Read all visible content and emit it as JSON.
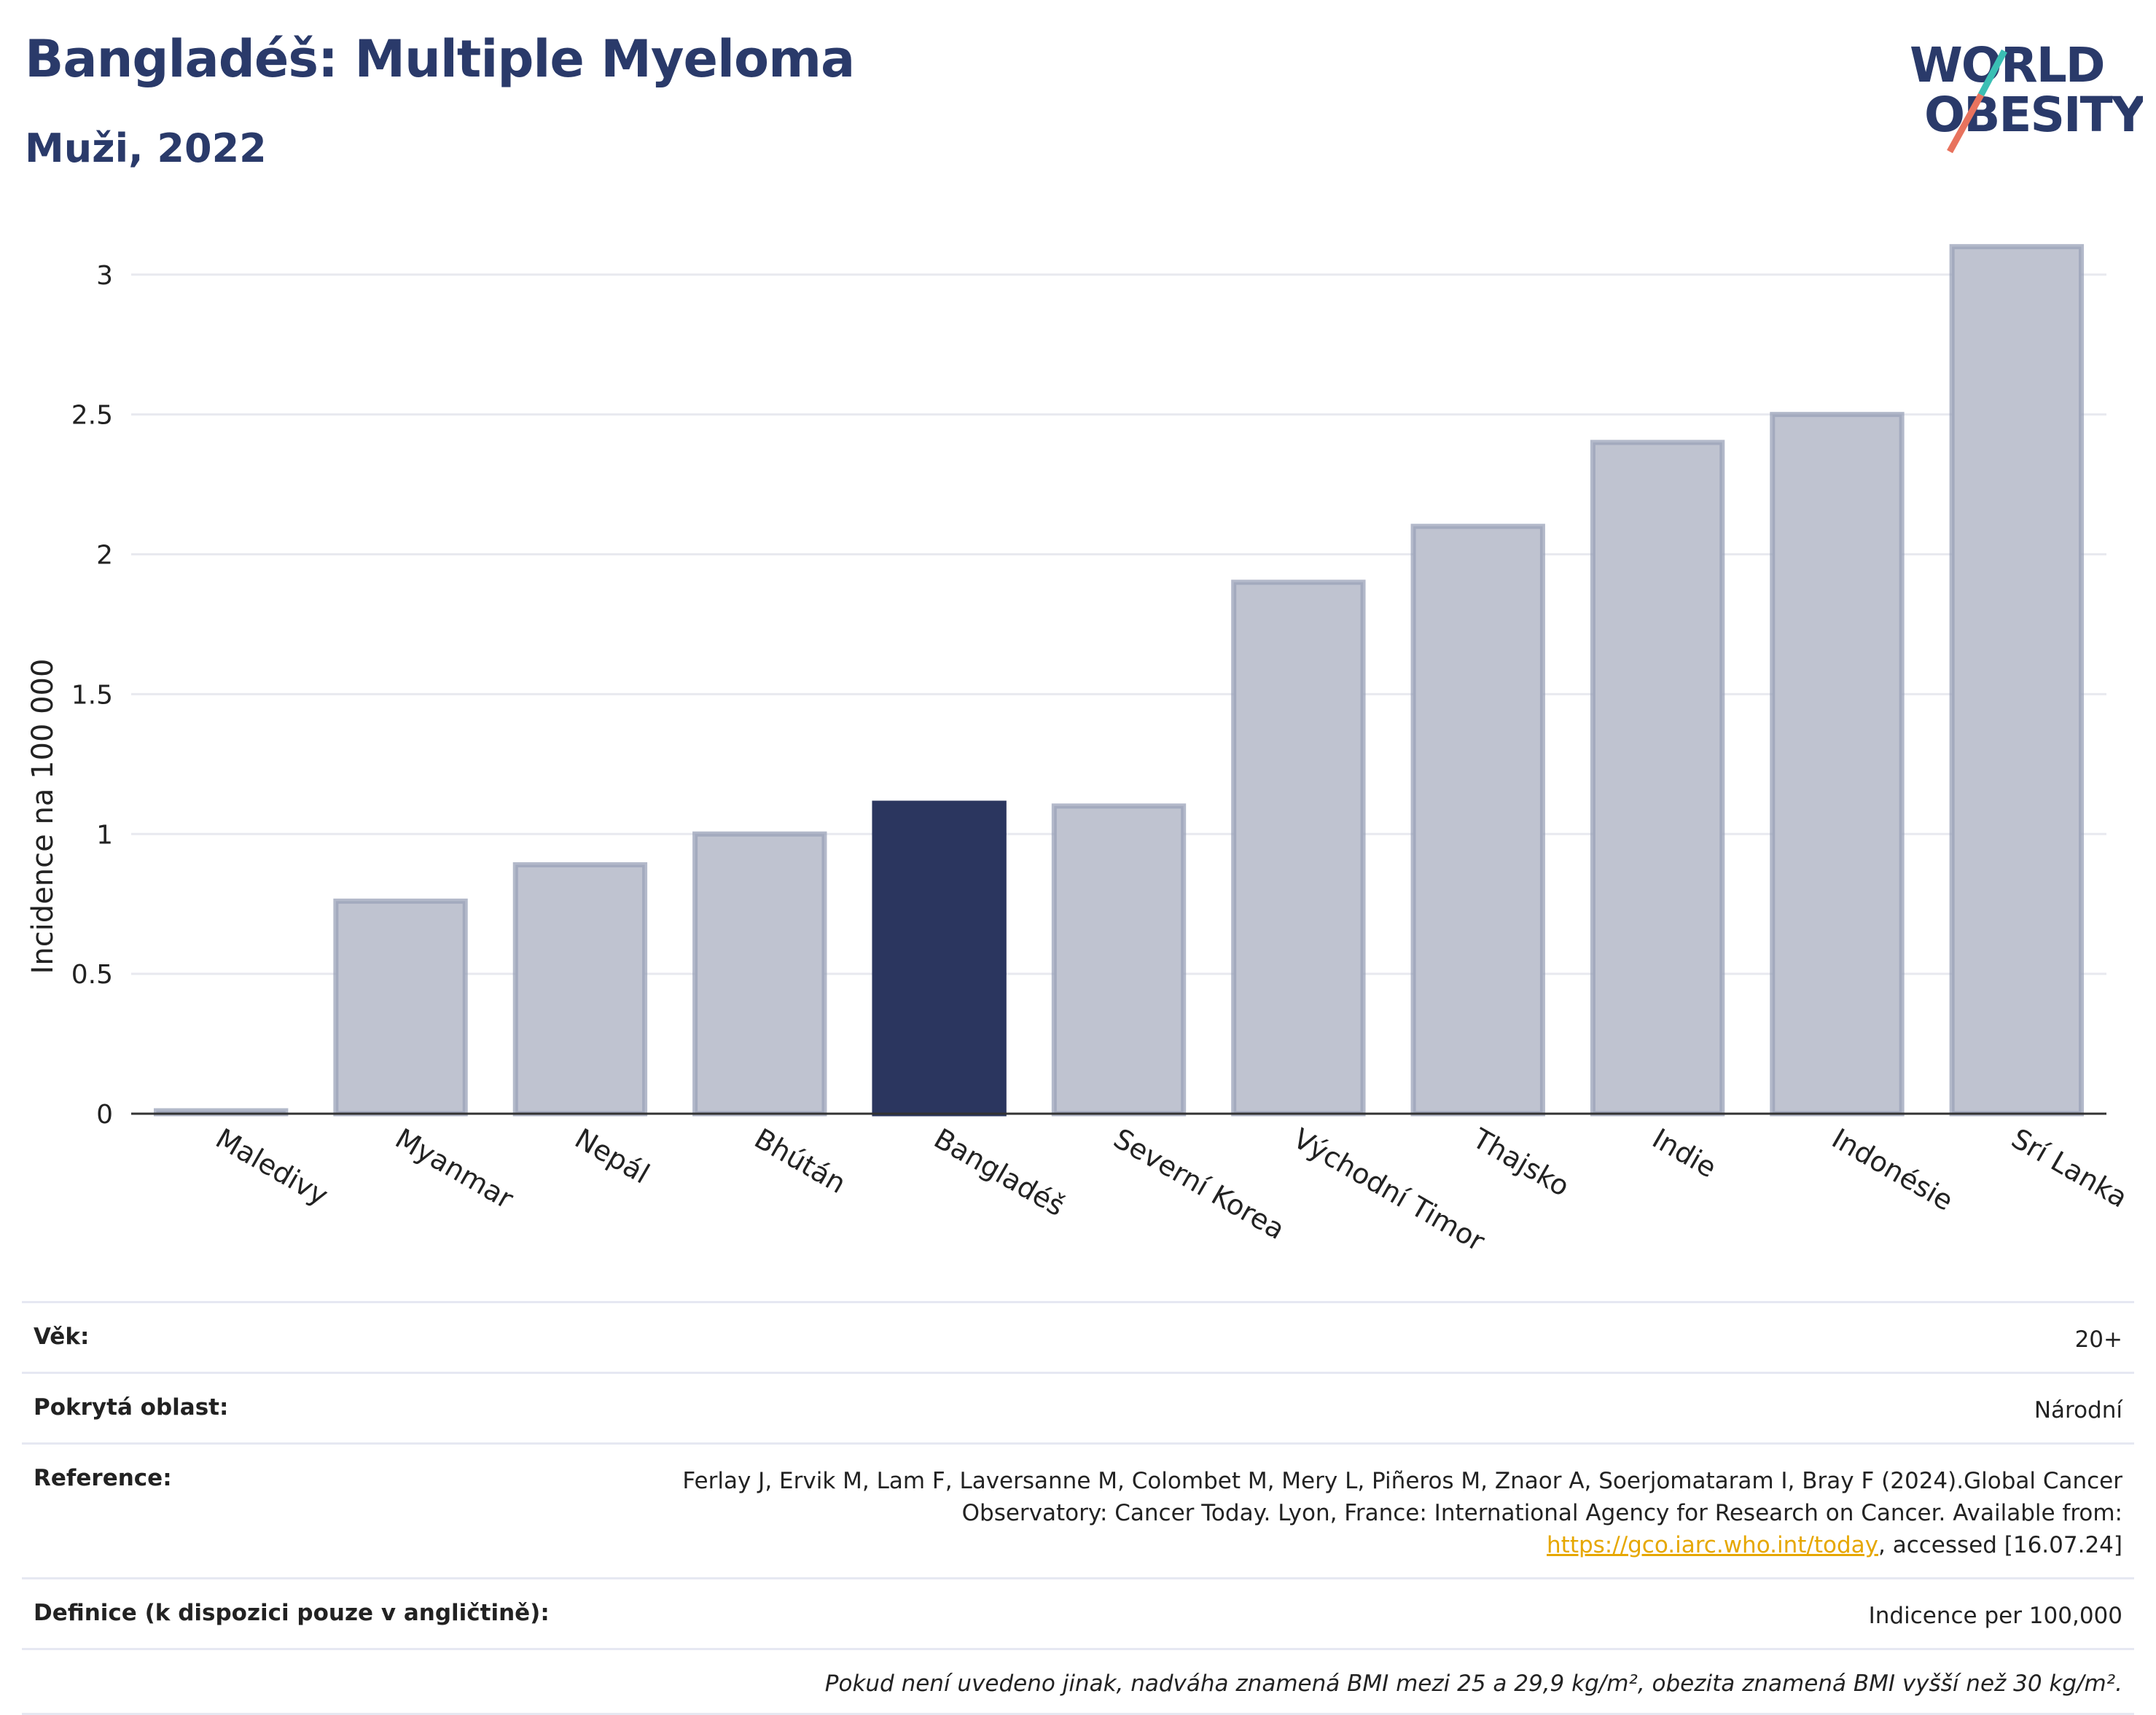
{
  "header": {
    "title": "Bangladéš: Multiple Myeloma",
    "subtitle": "Muži, 2022"
  },
  "logo": {
    "line1": "WORLD",
    "line2": "OBESITY"
  },
  "chart_data": {
    "type": "bar",
    "categories": [
      "Maledivy",
      "Myanmar",
      "Nepál",
      "Bhútán",
      "Bangladéš",
      "Severní Korea",
      "Východní Timor",
      "Thajsko",
      "Indie",
      "Indonésie",
      "Srí Lanka"
    ],
    "values": [
      0.01,
      0.76,
      0.89,
      1.0,
      1.11,
      1.1,
      1.9,
      2.1,
      2.4,
      2.5,
      3.1
    ],
    "highlight": "Bangladéš",
    "ylabel": "Incidence na 100 000",
    "yticks": [
      "0",
      "0.5",
      "1",
      "1.5",
      "2",
      "2.5",
      "3"
    ],
    "ylim": [
      0,
      3.2
    ],
    "grid": true,
    "colors": {
      "bar": "#bfc3d0",
      "bar_edge": "#9aa1b8",
      "highlight": "#2b365f",
      "grid": "#e8e9ef",
      "axis": "#333333"
    }
  },
  "meta": {
    "age_label": "Věk:",
    "age_value": "20+",
    "area_label": "Pokrytá oblast:",
    "area_value": "Národní",
    "ref_label": "Reference:",
    "ref_text_1": "Ferlay J, Ervik M, Lam F, Laversanne M, Colombet M, Mery L, Piñeros M, Znaor A, Soerjomataram I, Bray F (2024).Global Cancer Observatory: Cancer Today. Lyon, France: International Agency for Research on Cancer. Available from: ",
    "ref_link": "https://gco.iarc.who.int/today",
    "ref_text_2": ", accessed [16.07.24]",
    "def_label": "Definice (k dispozici pouze v angličtině):",
    "def_value": "Indicence per 100,000",
    "note": "Pokud není uvedeno jinak, nadváha znamená BMI mezi 25 a 29,9 kg/m², obezita znamená BMI vyšší než 30 kg/m²."
  }
}
